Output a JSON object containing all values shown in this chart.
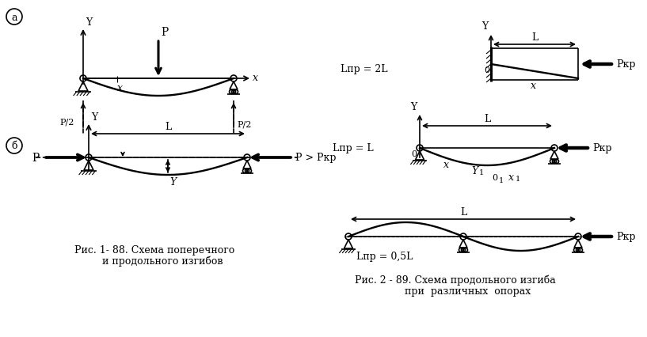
{
  "bg_color": "#ffffff",
  "line_color": "#000000",
  "fig_width": 8.17,
  "fig_height": 4.27,
  "dpi": 100,
  "caption1_line1": "Рис. 1- 88. Схема поперечного",
  "caption1_line2": "     и продольного изгибов",
  "caption2_line1": "Рис. 2 - 89. Схема продольного изгиба",
  "caption2_line2": "        при  различных  опорах",
  "lpr_2L": "Lпр = 2L",
  "lpr_L": "Lпр = L",
  "lpr_05L": "Lпр = 0,5L"
}
